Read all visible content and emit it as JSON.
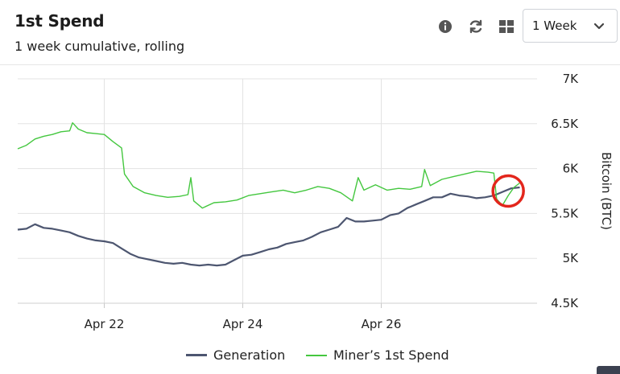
{
  "header": {
    "title": "1st Spend",
    "subtitle": "1 week cumulative, rolling",
    "range_select": {
      "value": "1 Week"
    },
    "icons": [
      "info-icon",
      "refresh-icon",
      "grid-icon",
      "chevron-down-icon"
    ]
  },
  "colors": {
    "generation": "#4d5670",
    "miners_first_spend": "#44c73f",
    "highlight": "#e3261c",
    "grid": "#e3e3e3"
  },
  "chart_data": {
    "type": "line",
    "ylabel": "Bitcoin (BTC)",
    "ylim": [
      4500,
      7000
    ],
    "yticks": [
      {
        "value": 7000,
        "label": "7K"
      },
      {
        "value": 6500,
        "label": "6.5K"
      },
      {
        "value": 6000,
        "label": "6K"
      },
      {
        "value": 5500,
        "label": "5.5K"
      },
      {
        "value": 5000,
        "label": "5K"
      },
      {
        "value": 4500,
        "label": "4.5K"
      }
    ],
    "xlim": [
      "2024-04-20T18:00",
      "2024-04-28T06:00"
    ],
    "xticks": [
      {
        "value": "2024-04-22T00:00",
        "label": "Apr 22"
      },
      {
        "value": "2024-04-24T00:00",
        "label": "Apr 24"
      },
      {
        "value": "2024-04-26T00:00",
        "label": "Apr 26"
      }
    ],
    "legend": "bottom-center",
    "grid": true,
    "series": [
      {
        "name": "Generation",
        "points": [
          [
            "2024-04-20T18:00",
            5320
          ],
          [
            "2024-04-20T21:00",
            5330
          ],
          [
            "2024-04-21T00:00",
            5380
          ],
          [
            "2024-04-21T03:00",
            5340
          ],
          [
            "2024-04-21T06:00",
            5330
          ],
          [
            "2024-04-21T09:00",
            5310
          ],
          [
            "2024-04-21T12:00",
            5290
          ],
          [
            "2024-04-21T15:00",
            5250
          ],
          [
            "2024-04-21T18:00",
            5220
          ],
          [
            "2024-04-21T21:00",
            5200
          ],
          [
            "2024-04-22T00:00",
            5190
          ],
          [
            "2024-04-22T03:00",
            5170
          ],
          [
            "2024-04-22T06:00",
            5110
          ],
          [
            "2024-04-22T09:00",
            5050
          ],
          [
            "2024-04-22T12:00",
            5010
          ],
          [
            "2024-04-22T15:00",
            4990
          ],
          [
            "2024-04-22T18:00",
            4970
          ],
          [
            "2024-04-22T21:00",
            4950
          ],
          [
            "2024-04-23T00:00",
            4940
          ],
          [
            "2024-04-23T03:00",
            4950
          ],
          [
            "2024-04-23T06:00",
            4930
          ],
          [
            "2024-04-23T09:00",
            4920
          ],
          [
            "2024-04-23T12:00",
            4930
          ],
          [
            "2024-04-23T15:00",
            4920
          ],
          [
            "2024-04-23T18:00",
            4930
          ],
          [
            "2024-04-23T21:00",
            4980
          ],
          [
            "2024-04-24T00:00",
            5030
          ],
          [
            "2024-04-24T03:00",
            5040
          ],
          [
            "2024-04-24T06:00",
            5070
          ],
          [
            "2024-04-24T09:00",
            5100
          ],
          [
            "2024-04-24T12:00",
            5120
          ],
          [
            "2024-04-24T15:00",
            5160
          ],
          [
            "2024-04-24T18:00",
            5180
          ],
          [
            "2024-04-24T21:00",
            5200
          ],
          [
            "2024-04-25T00:00",
            5240
          ],
          [
            "2024-04-25T03:00",
            5290
          ],
          [
            "2024-04-25T06:00",
            5320
          ],
          [
            "2024-04-25T09:00",
            5350
          ],
          [
            "2024-04-25T12:00",
            5450
          ],
          [
            "2024-04-25T15:00",
            5410
          ],
          [
            "2024-04-25T18:00",
            5410
          ],
          [
            "2024-04-25T21:00",
            5420
          ],
          [
            "2024-04-26T00:00",
            5430
          ],
          [
            "2024-04-26T03:00",
            5480
          ],
          [
            "2024-04-26T06:00",
            5500
          ],
          [
            "2024-04-26T09:00",
            5560
          ],
          [
            "2024-04-26T12:00",
            5600
          ],
          [
            "2024-04-26T15:00",
            5640
          ],
          [
            "2024-04-26T18:00",
            5680
          ],
          [
            "2024-04-26T21:00",
            5680
          ],
          [
            "2024-04-27T00:00",
            5720
          ],
          [
            "2024-04-27T03:00",
            5700
          ],
          [
            "2024-04-27T06:00",
            5690
          ],
          [
            "2024-04-27T09:00",
            5670
          ],
          [
            "2024-04-27T12:00",
            5680
          ],
          [
            "2024-04-27T15:00",
            5700
          ],
          [
            "2024-04-27T18:00",
            5740
          ],
          [
            "2024-04-27T21:00",
            5780
          ],
          [
            "2024-04-28T00:00",
            5790
          ]
        ]
      },
      {
        "name": "Miner’s 1st Spend",
        "points": [
          [
            "2024-04-20T18:00",
            6220
          ],
          [
            "2024-04-20T21:00",
            6260
          ],
          [
            "2024-04-21T00:00",
            6330
          ],
          [
            "2024-04-21T03:00",
            6360
          ],
          [
            "2024-04-21T06:00",
            6380
          ],
          [
            "2024-04-21T09:00",
            6410
          ],
          [
            "2024-04-21T12:00",
            6420
          ],
          [
            "2024-04-21T13:00",
            6510
          ],
          [
            "2024-04-21T15:00",
            6440
          ],
          [
            "2024-04-21T18:00",
            6400
          ],
          [
            "2024-04-21T21:00",
            6390
          ],
          [
            "2024-04-22T00:00",
            6380
          ],
          [
            "2024-04-22T03:00",
            6300
          ],
          [
            "2024-04-22T06:00",
            6230
          ],
          [
            "2024-04-22T07:00",
            5940
          ],
          [
            "2024-04-22T10:00",
            5800
          ],
          [
            "2024-04-22T14:00",
            5730
          ],
          [
            "2024-04-22T18:00",
            5700
          ],
          [
            "2024-04-22T22:00",
            5680
          ],
          [
            "2024-04-23T02:00",
            5690
          ],
          [
            "2024-04-23T05:00",
            5710
          ],
          [
            "2024-04-23T06:00",
            5900
          ],
          [
            "2024-04-23T07:00",
            5640
          ],
          [
            "2024-04-23T10:00",
            5560
          ],
          [
            "2024-04-23T14:00",
            5620
          ],
          [
            "2024-04-23T18:00",
            5630
          ],
          [
            "2024-04-23T22:00",
            5650
          ],
          [
            "2024-04-24T02:00",
            5700
          ],
          [
            "2024-04-24T06:00",
            5720
          ],
          [
            "2024-04-24T10:00",
            5740
          ],
          [
            "2024-04-24T14:00",
            5760
          ],
          [
            "2024-04-24T18:00",
            5730
          ],
          [
            "2024-04-24T22:00",
            5760
          ],
          [
            "2024-04-25T02:00",
            5800
          ],
          [
            "2024-04-25T06:00",
            5780
          ],
          [
            "2024-04-25T10:00",
            5730
          ],
          [
            "2024-04-25T14:00",
            5640
          ],
          [
            "2024-04-25T16:00",
            5900
          ],
          [
            "2024-04-25T18:00",
            5760
          ],
          [
            "2024-04-25T22:00",
            5820
          ],
          [
            "2024-04-26T02:00",
            5760
          ],
          [
            "2024-04-26T06:00",
            5780
          ],
          [
            "2024-04-26T10:00",
            5770
          ],
          [
            "2024-04-26T14:00",
            5800
          ],
          [
            "2024-04-26T15:00",
            5990
          ],
          [
            "2024-04-26T17:00",
            5810
          ],
          [
            "2024-04-26T21:00",
            5880
          ],
          [
            "2024-04-27T01:00",
            5910
          ],
          [
            "2024-04-27T05:00",
            5940
          ],
          [
            "2024-04-27T09:00",
            5970
          ],
          [
            "2024-04-27T13:00",
            5960
          ],
          [
            "2024-04-27T15:00",
            5950
          ],
          [
            "2024-04-27T16:00",
            5660
          ],
          [
            "2024-04-27T18:00",
            5590
          ],
          [
            "2024-04-27T20:00",
            5700
          ],
          [
            "2024-04-27T22:00",
            5790
          ],
          [
            "2024-04-28T00:00",
            5840
          ]
        ]
      }
    ],
    "annotations": [
      {
        "type": "circle",
        "x": "2024-04-27T20:00",
        "y": 5750
      }
    ]
  }
}
